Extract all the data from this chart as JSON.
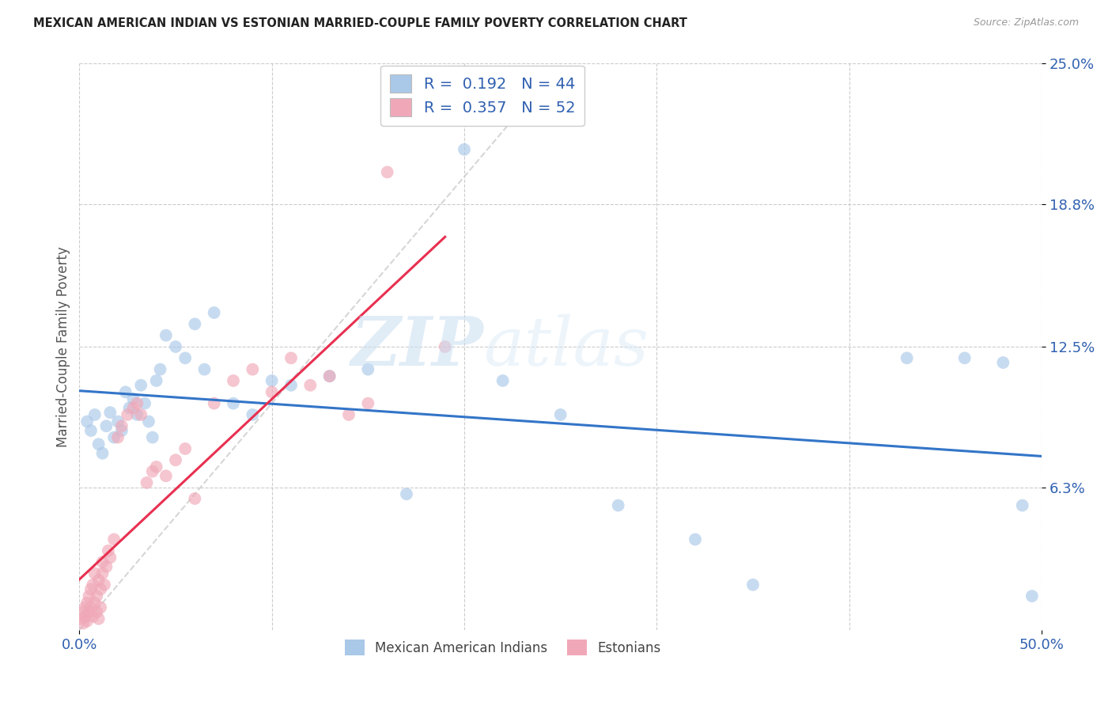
{
  "title": "MEXICAN AMERICAN INDIAN VS ESTONIAN MARRIED-COUPLE FAMILY POVERTY CORRELATION CHART",
  "source": "Source: ZipAtlas.com",
  "ylabel": "Married-Couple Family Poverty",
  "xlim": [
    0,
    0.5
  ],
  "ylim": [
    0,
    0.25
  ],
  "yticks_right": [
    0.063,
    0.125,
    0.188,
    0.25
  ],
  "ytick_labels_right": [
    "6.3%",
    "12.5%",
    "18.8%",
    "25.0%"
  ],
  "xticks": [
    0.0,
    0.5
  ],
  "xtick_labels": [
    "0.0%",
    "50.0%"
  ],
  "grid_xticks": [
    0.0,
    0.1,
    0.2,
    0.3,
    0.4,
    0.5
  ],
  "blue_fill": "#aac8e8",
  "pink_fill": "#f0a8b8",
  "blue_line": "#3375c8",
  "pink_line": "#e83050",
  "R_blue": 0.192,
  "N_blue": 44,
  "R_pink": 0.357,
  "N_pink": 52,
  "blue_x": [
    0.004,
    0.006,
    0.008,
    0.01,
    0.012,
    0.014,
    0.016,
    0.018,
    0.02,
    0.022,
    0.024,
    0.026,
    0.028,
    0.03,
    0.032,
    0.034,
    0.036,
    0.038,
    0.04,
    0.042,
    0.045,
    0.05,
    0.055,
    0.06,
    0.065,
    0.07,
    0.08,
    0.09,
    0.1,
    0.11,
    0.13,
    0.15,
    0.17,
    0.2,
    0.22,
    0.25,
    0.28,
    0.32,
    0.35,
    0.43,
    0.46,
    0.48,
    0.49,
    0.495
  ],
  "blue_y": [
    0.092,
    0.088,
    0.095,
    0.082,
    0.078,
    0.09,
    0.096,
    0.085,
    0.092,
    0.088,
    0.105,
    0.098,
    0.102,
    0.095,
    0.108,
    0.1,
    0.092,
    0.085,
    0.11,
    0.115,
    0.13,
    0.125,
    0.12,
    0.135,
    0.115,
    0.14,
    0.1,
    0.095,
    0.11,
    0.108,
    0.112,
    0.115,
    0.06,
    0.212,
    0.11,
    0.095,
    0.055,
    0.04,
    0.02,
    0.12,
    0.12,
    0.118,
    0.055,
    0.015
  ],
  "pink_x": [
    0.001,
    0.002,
    0.002,
    0.003,
    0.003,
    0.004,
    0.004,
    0.005,
    0.005,
    0.006,
    0.006,
    0.007,
    0.007,
    0.008,
    0.008,
    0.009,
    0.009,
    0.01,
    0.01,
    0.011,
    0.011,
    0.012,
    0.012,
    0.013,
    0.014,
    0.015,
    0.016,
    0.018,
    0.02,
    0.022,
    0.025,
    0.028,
    0.03,
    0.032,
    0.035,
    0.038,
    0.04,
    0.045,
    0.05,
    0.055,
    0.06,
    0.07,
    0.08,
    0.09,
    0.1,
    0.11,
    0.12,
    0.13,
    0.14,
    0.15,
    0.16,
    0.19
  ],
  "pink_y": [
    0.005,
    0.008,
    0.003,
    0.01,
    0.006,
    0.012,
    0.004,
    0.015,
    0.008,
    0.01,
    0.018,
    0.006,
    0.02,
    0.012,
    0.025,
    0.008,
    0.015,
    0.022,
    0.005,
    0.018,
    0.01,
    0.025,
    0.03,
    0.02,
    0.028,
    0.035,
    0.032,
    0.04,
    0.085,
    0.09,
    0.095,
    0.098,
    0.1,
    0.095,
    0.065,
    0.07,
    0.072,
    0.068,
    0.075,
    0.08,
    0.058,
    0.1,
    0.11,
    0.115,
    0.105,
    0.12,
    0.108,
    0.112,
    0.095,
    0.1,
    0.202,
    0.125
  ],
  "watermark_zip": "ZIP",
  "watermark_atlas": "atlas",
  "ref_line_color": "#cccccc"
}
